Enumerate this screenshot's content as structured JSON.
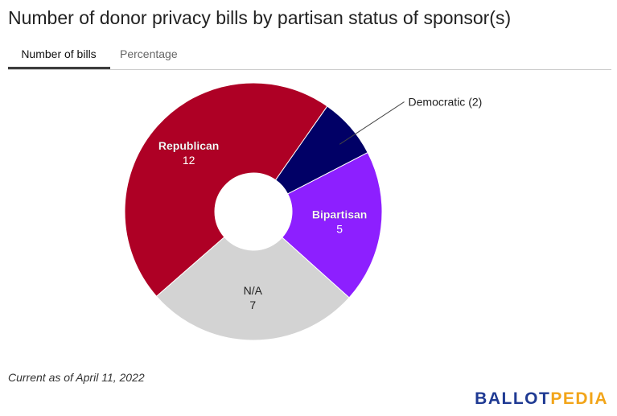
{
  "title": "Number of donor privacy bills by partisan status of sponsor(s)",
  "tabs": [
    {
      "label": "Number of bills",
      "active": true
    },
    {
      "label": "Percentage",
      "active": false
    }
  ],
  "chart_data": {
    "type": "pie",
    "donut": true,
    "slices": [
      {
        "label": "Democratic",
        "value": 2,
        "color": "#010066",
        "display": "Democratic (2)"
      },
      {
        "label": "Bipartisan",
        "value": 5,
        "color": "#8d1fff",
        "display": "5"
      },
      {
        "label": "N/A",
        "value": 7,
        "color": "#d3d3d3",
        "display": "7"
      },
      {
        "label": "Republican",
        "value": 12,
        "color": "#ae0025",
        "display": "12"
      }
    ]
  },
  "footnote": "Current as of April 11, 2022",
  "logo": {
    "part1": "BALLOT",
    "part2": "PEDIA"
  }
}
